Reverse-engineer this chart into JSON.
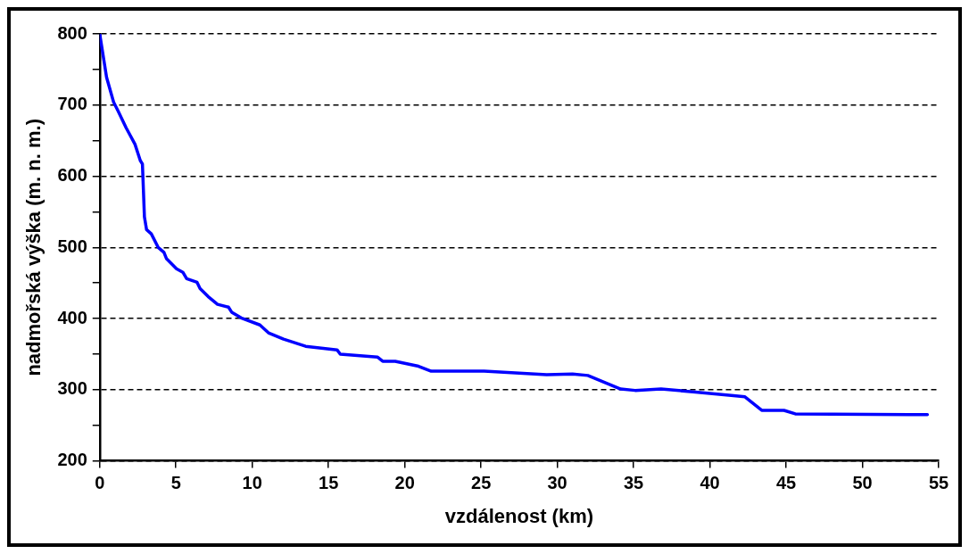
{
  "chart_data": {
    "type": "line",
    "xlabel": "vzdálenost (km)",
    "ylabel": "nadmořská výška (m. n. m.)",
    "series": [
      {
        "color": "#0000ff",
        "x": [
          0,
          0.45,
          0.91,
          1.22,
          1.73,
          2.31,
          2.66,
          2.8,
          2.93,
          3.07,
          3.38,
          3.83,
          4.21,
          4.38,
          5.03,
          5.45,
          5.7,
          6.38,
          6.58,
          7.1,
          7.72,
          8.44,
          8.65,
          9.27,
          10.5,
          11.06,
          12.05,
          13.5,
          15.56,
          15.77,
          18.2,
          18.55,
          19.37,
          20.9,
          21.73,
          25.2,
          29.3,
          31,
          32,
          34.15,
          35.1,
          36.8,
          38.9,
          41.4,
          42.3,
          43.4,
          44.86,
          45.6,
          54.26
        ],
        "values": [
          800,
          739,
          704,
          691,
          668,
          645,
          622,
          617,
          543,
          525,
          519,
          500,
          493,
          484,
          470,
          465,
          456,
          451,
          442,
          431,
          420,
          416,
          409,
          401,
          391,
          380,
          371,
          361,
          356,
          350,
          346,
          340,
          340,
          333,
          326,
          326,
          321,
          322,
          320,
          301,
          299,
          301,
          297,
          292,
          290,
          271,
          271,
          266,
          265
        ]
      }
    ],
    "xlim": [
      0,
      55
    ],
    "xticks": [
      0,
      5,
      10,
      15,
      20,
      25,
      30,
      35,
      40,
      45,
      50,
      55
    ],
    "ylim": [
      200,
      800
    ],
    "yticks": [
      200,
      {
        "value": 250,
        "label": null
      },
      300,
      {
        "value": 350,
        "label": null
      },
      400,
      {
        "value": 450,
        "label": null
      },
      500,
      {
        "value": 550,
        "label": null
      },
      600,
      {
        "value": 650,
        "label": null
      },
      700,
      {
        "value": 750,
        "label": null
      },
      800
    ],
    "grid": "y",
    "legend": false,
    "marker": "none",
    "line_style": "solid"
  }
}
